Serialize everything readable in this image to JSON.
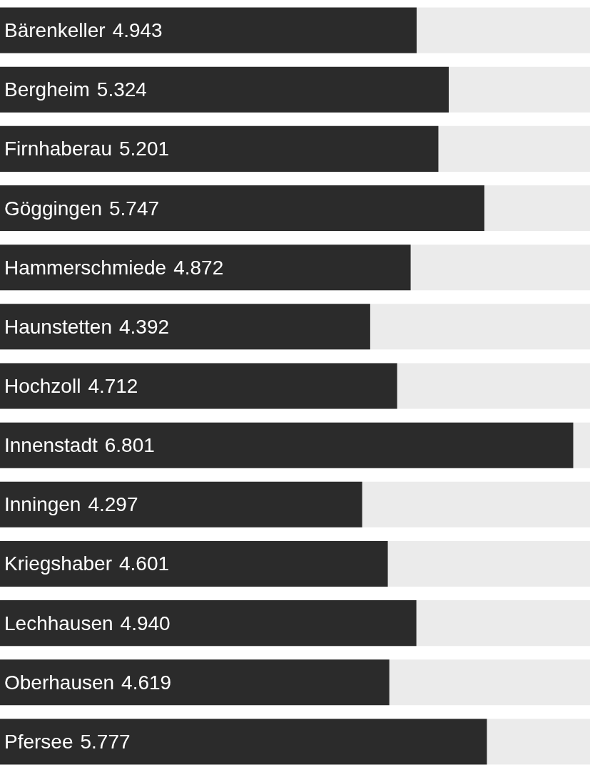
{
  "chart_data": {
    "type": "bar",
    "orientation": "horizontal",
    "categories": [
      "Bärenkeller",
      "Bergheim",
      "Firnhaberau",
      "Göggingen",
      "Hammerschmiede",
      "Haunstetten",
      "Hochzoll",
      "Innenstadt",
      "Inningen",
      "Kriegshaber",
      "Lechhausen",
      "Oberhausen",
      "Pfersee"
    ],
    "values": [
      4.943,
      5.324,
      5.201,
      5.747,
      4.872,
      4.392,
      4.712,
      6.801,
      4.297,
      4.601,
      4.94,
      4.619,
      5.777
    ],
    "value_labels": [
      "4.943",
      "5.324",
      "5.201",
      "5.747",
      "4.872",
      "4.392",
      "4.712",
      "6.801",
      "4.297",
      "4.601",
      "4.940",
      "4.619",
      "5.777"
    ],
    "color": "#2b2b2b",
    "xlim": [
      0,
      7
    ]
  }
}
